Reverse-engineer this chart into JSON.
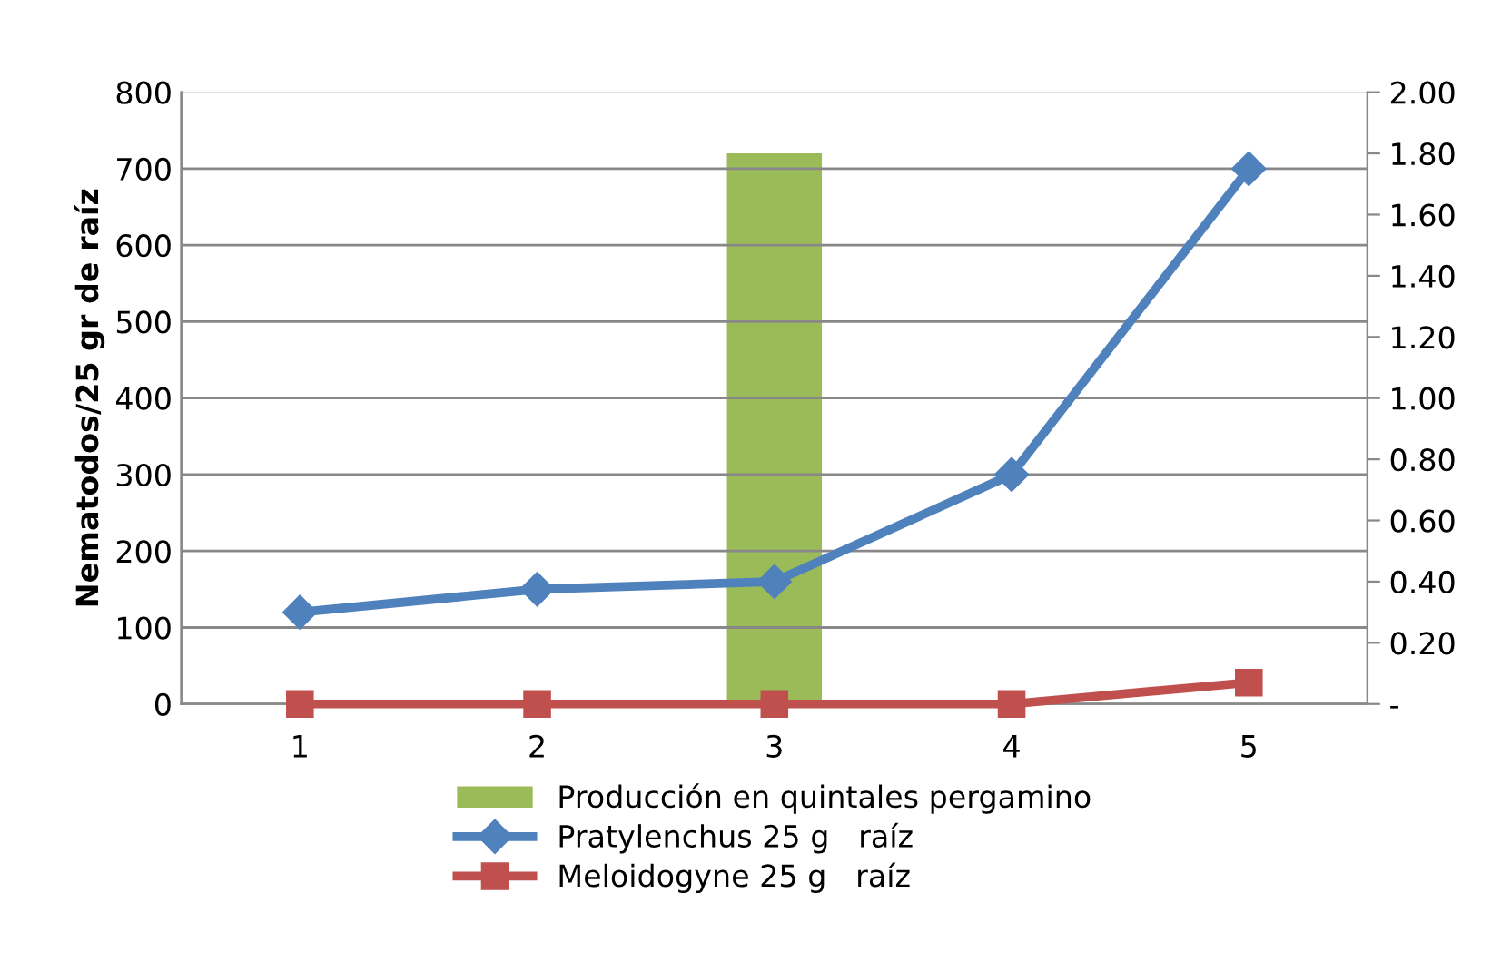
{
  "chart_data": {
    "type": "line",
    "ylabel": "Nematodos/25 gr de raíz",
    "categories": [
      "1",
      "2",
      "3",
      "4",
      "5"
    ],
    "series": [
      {
        "name": "Producción en quintales pergamino",
        "type": "bar",
        "axis": "y2",
        "color": "#9bbb59",
        "values": [
          null,
          null,
          1.8,
          null,
          null
        ]
      },
      {
        "name": "Pratylenchus 25 g   raíz",
        "color": "#4f81bd",
        "marker": "diamond",
        "values": [
          120,
          150,
          160,
          300,
          700
        ]
      },
      {
        "name": "Meloidogyne 25 g   raíz",
        "color": "#c0504d",
        "marker": "square",
        "values": [
          0,
          0,
          0,
          0,
          28
        ]
      }
    ],
    "ylim": [
      0,
      800
    ],
    "yticks": [
      0,
      100,
      200,
      300,
      400,
      500,
      600,
      700,
      800
    ],
    "y2lim": [
      0,
      2
    ],
    "y2ticks": [
      {
        "value": 0,
        "label": "-"
      },
      {
        "value": 0.2,
        "label": "0.20"
      },
      {
        "value": 0.4,
        "label": "0.40"
      },
      {
        "value": 0.6,
        "label": "0.60"
      },
      {
        "value": 0.8,
        "label": "0.80"
      },
      {
        "value": 1.0,
        "label": "1.00"
      },
      {
        "value": 1.2,
        "label": "1.20"
      },
      {
        "value": 1.4,
        "label": "1.40"
      },
      {
        "value": 1.6,
        "label": "1.60"
      },
      {
        "value": 1.8,
        "label": "1.80"
      },
      {
        "value": 2.0,
        "label": "2.00"
      }
    ],
    "grid": "y",
    "legend": "bottom",
    "line_style": "solid"
  }
}
